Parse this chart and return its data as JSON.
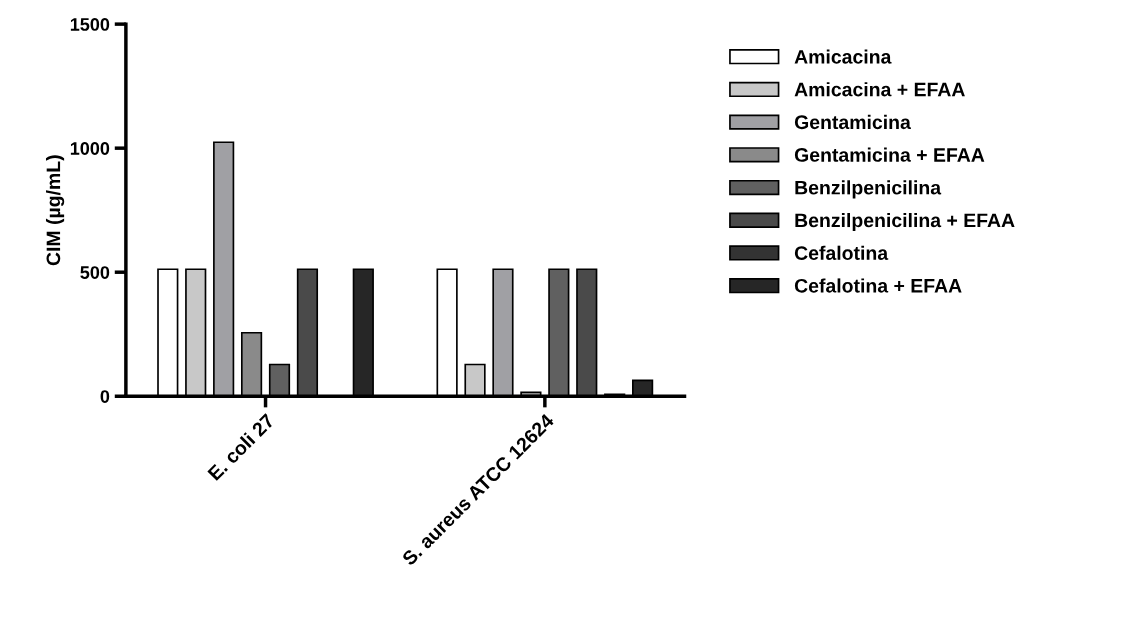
{
  "chart_data": {
    "type": "bar",
    "ylabel": "CIM (µg/mL)",
    "categories": [
      "E. coli 27",
      "S. aureus ATCC 12624"
    ],
    "series": [
      {
        "name": "Amicacina",
        "color": "#ffffff",
        "values": [
          512,
          512
        ]
      },
      {
        "name": "Amicacina + EFAA",
        "color": "#c8c8c8",
        "values": [
          512,
          128
        ]
      },
      {
        "name": "Gentamicina",
        "color": "#a0a0a4",
        "values": [
          1024,
          512
        ]
      },
      {
        "name": "Gentamicina + EFAA",
        "color": "#8a8a8a",
        "values": [
          256,
          16
        ]
      },
      {
        "name": "Benzilpenicilina",
        "color": "#606060",
        "values": [
          128,
          512
        ]
      },
      {
        "name": "Benzilpenicilina + EFAA",
        "color": "#4a4a4a",
        "values": [
          512,
          512
        ]
      },
      {
        "name": "Cefalotina",
        "color": "#333333",
        "values": [
          null,
          8
        ]
      },
      {
        "name": "Cefalotina + EFAA",
        "color": "#262626",
        "values": [
          512,
          64
        ]
      }
    ],
    "ylim": [
      0,
      1500
    ],
    "yticks": [
      0,
      500,
      1000,
      1500
    ],
    "grid": false,
    "legend": "right"
  }
}
